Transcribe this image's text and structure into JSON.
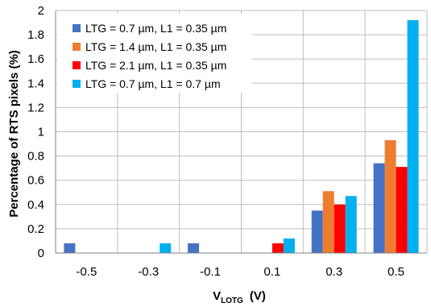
{
  "chart_data": {
    "type": "bar",
    "categories": [
      "-0.5",
      "-0.3",
      "-0.1",
      "0.1",
      "0.3",
      "0.5"
    ],
    "series": [
      {
        "name": "LTG = 0.7 µm, L1 = 0.35 µm",
        "color": "#4472C4",
        "values": [
          0.08,
          0,
          0.08,
          0,
          0.35,
          0.74
        ]
      },
      {
        "name": "LTG = 1.4 µm, L1 = 0.35 µm",
        "color": "#ED7D31",
        "values": [
          0,
          0,
          0,
          0,
          0.51,
          0.93
        ]
      },
      {
        "name": "LTG = 2.1 µm, L1 = 0.35 µm",
        "color": "#FF0000",
        "values": [
          0,
          0,
          0,
          0.08,
          0.4,
          0.71
        ]
      },
      {
        "name": "LTG = 0.7 µm, L1 = 0.7 µm",
        "color": "#00B0F0",
        "values": [
          0,
          0.08,
          0,
          0.12,
          0.47,
          1.92
        ]
      }
    ],
    "xlabel_main": "V",
    "xlabel_sub": "LOTG",
    "xlabel_unit": "(V)",
    "ylabel": "Percentage of RTS pixels (%)",
    "ylim": [
      0,
      2
    ],
    "yticks": [
      "0",
      "0.2",
      "0.4",
      "0.6",
      "0.8",
      "1",
      "1.2",
      "1.4",
      "1.6",
      "1.8",
      "2"
    ],
    "grid": true,
    "legend_position": "top-left"
  }
}
